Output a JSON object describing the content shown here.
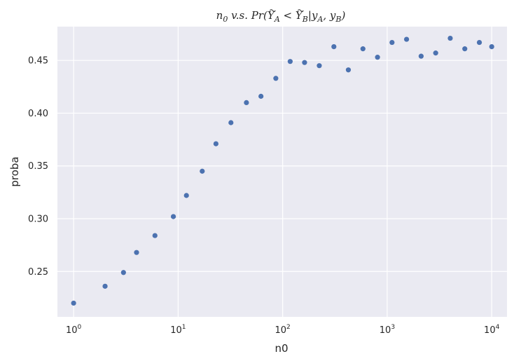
{
  "chart_data": {
    "type": "scatter",
    "title_parts": {
      "prefix": "n",
      "prefix_sub": "0",
      "vs": " v.s. ",
      "pr": "Pr(",
      "ya": "Y",
      "ya_sub": "A",
      "lt": " < ",
      "yb": "Y",
      "yb_sub": "B",
      "bar": "|",
      "y": "y",
      "y_a_sub": "A",
      "comma": ", ",
      "y2": "y",
      "y_b_sub": "B",
      "close": ")"
    },
    "xlabel": "n0",
    "ylabel": "proba",
    "xscale": "log",
    "xlim": [
      0.7,
      14000
    ],
    "ylim": [
      0.207,
      0.482
    ],
    "grid": true,
    "background": "#eaeaf2",
    "grid_color": "#ffffff",
    "marker_color": "#4c72b0",
    "x_ticks": [
      {
        "base": "10",
        "exp": "0",
        "value": 1
      },
      {
        "base": "10",
        "exp": "1",
        "value": 10
      },
      {
        "base": "10",
        "exp": "2",
        "value": 100
      },
      {
        "base": "10",
        "exp": "3",
        "value": 1000
      },
      {
        "base": "10",
        "exp": "4",
        "value": 10000
      }
    ],
    "y_ticks": [
      {
        "label": "0.25",
        "value": 0.25
      },
      {
        "label": "0.30",
        "value": 0.3
      },
      {
        "label": "0.35",
        "value": 0.35
      },
      {
        "label": "0.40",
        "value": 0.4
      },
      {
        "label": "0.45",
        "value": 0.45
      }
    ],
    "points": [
      {
        "x": 1,
        "y": 0.22
      },
      {
        "x": 2,
        "y": 0.236
      },
      {
        "x": 3,
        "y": 0.249
      },
      {
        "x": 4,
        "y": 0.268
      },
      {
        "x": 6,
        "y": 0.284
      },
      {
        "x": 9,
        "y": 0.302
      },
      {
        "x": 12,
        "y": 0.322
      },
      {
        "x": 17,
        "y": 0.345
      },
      {
        "x": 23,
        "y": 0.371
      },
      {
        "x": 32,
        "y": 0.391
      },
      {
        "x": 45,
        "y": 0.41
      },
      {
        "x": 62,
        "y": 0.416
      },
      {
        "x": 86,
        "y": 0.433
      },
      {
        "x": 118,
        "y": 0.449
      },
      {
        "x": 162,
        "y": 0.448
      },
      {
        "x": 224,
        "y": 0.445
      },
      {
        "x": 309,
        "y": 0.463
      },
      {
        "x": 425,
        "y": 0.441
      },
      {
        "x": 586,
        "y": 0.461
      },
      {
        "x": 808,
        "y": 0.453
      },
      {
        "x": 1112,
        "y": 0.467
      },
      {
        "x": 1532,
        "y": 0.47
      },
      {
        "x": 2112,
        "y": 0.454
      },
      {
        "x": 2910,
        "y": 0.457
      },
      {
        "x": 4010,
        "y": 0.471
      },
      {
        "x": 5526,
        "y": 0.461
      },
      {
        "x": 7616,
        "y": 0.467
      },
      {
        "x": 10000,
        "y": 0.463
      }
    ]
  }
}
